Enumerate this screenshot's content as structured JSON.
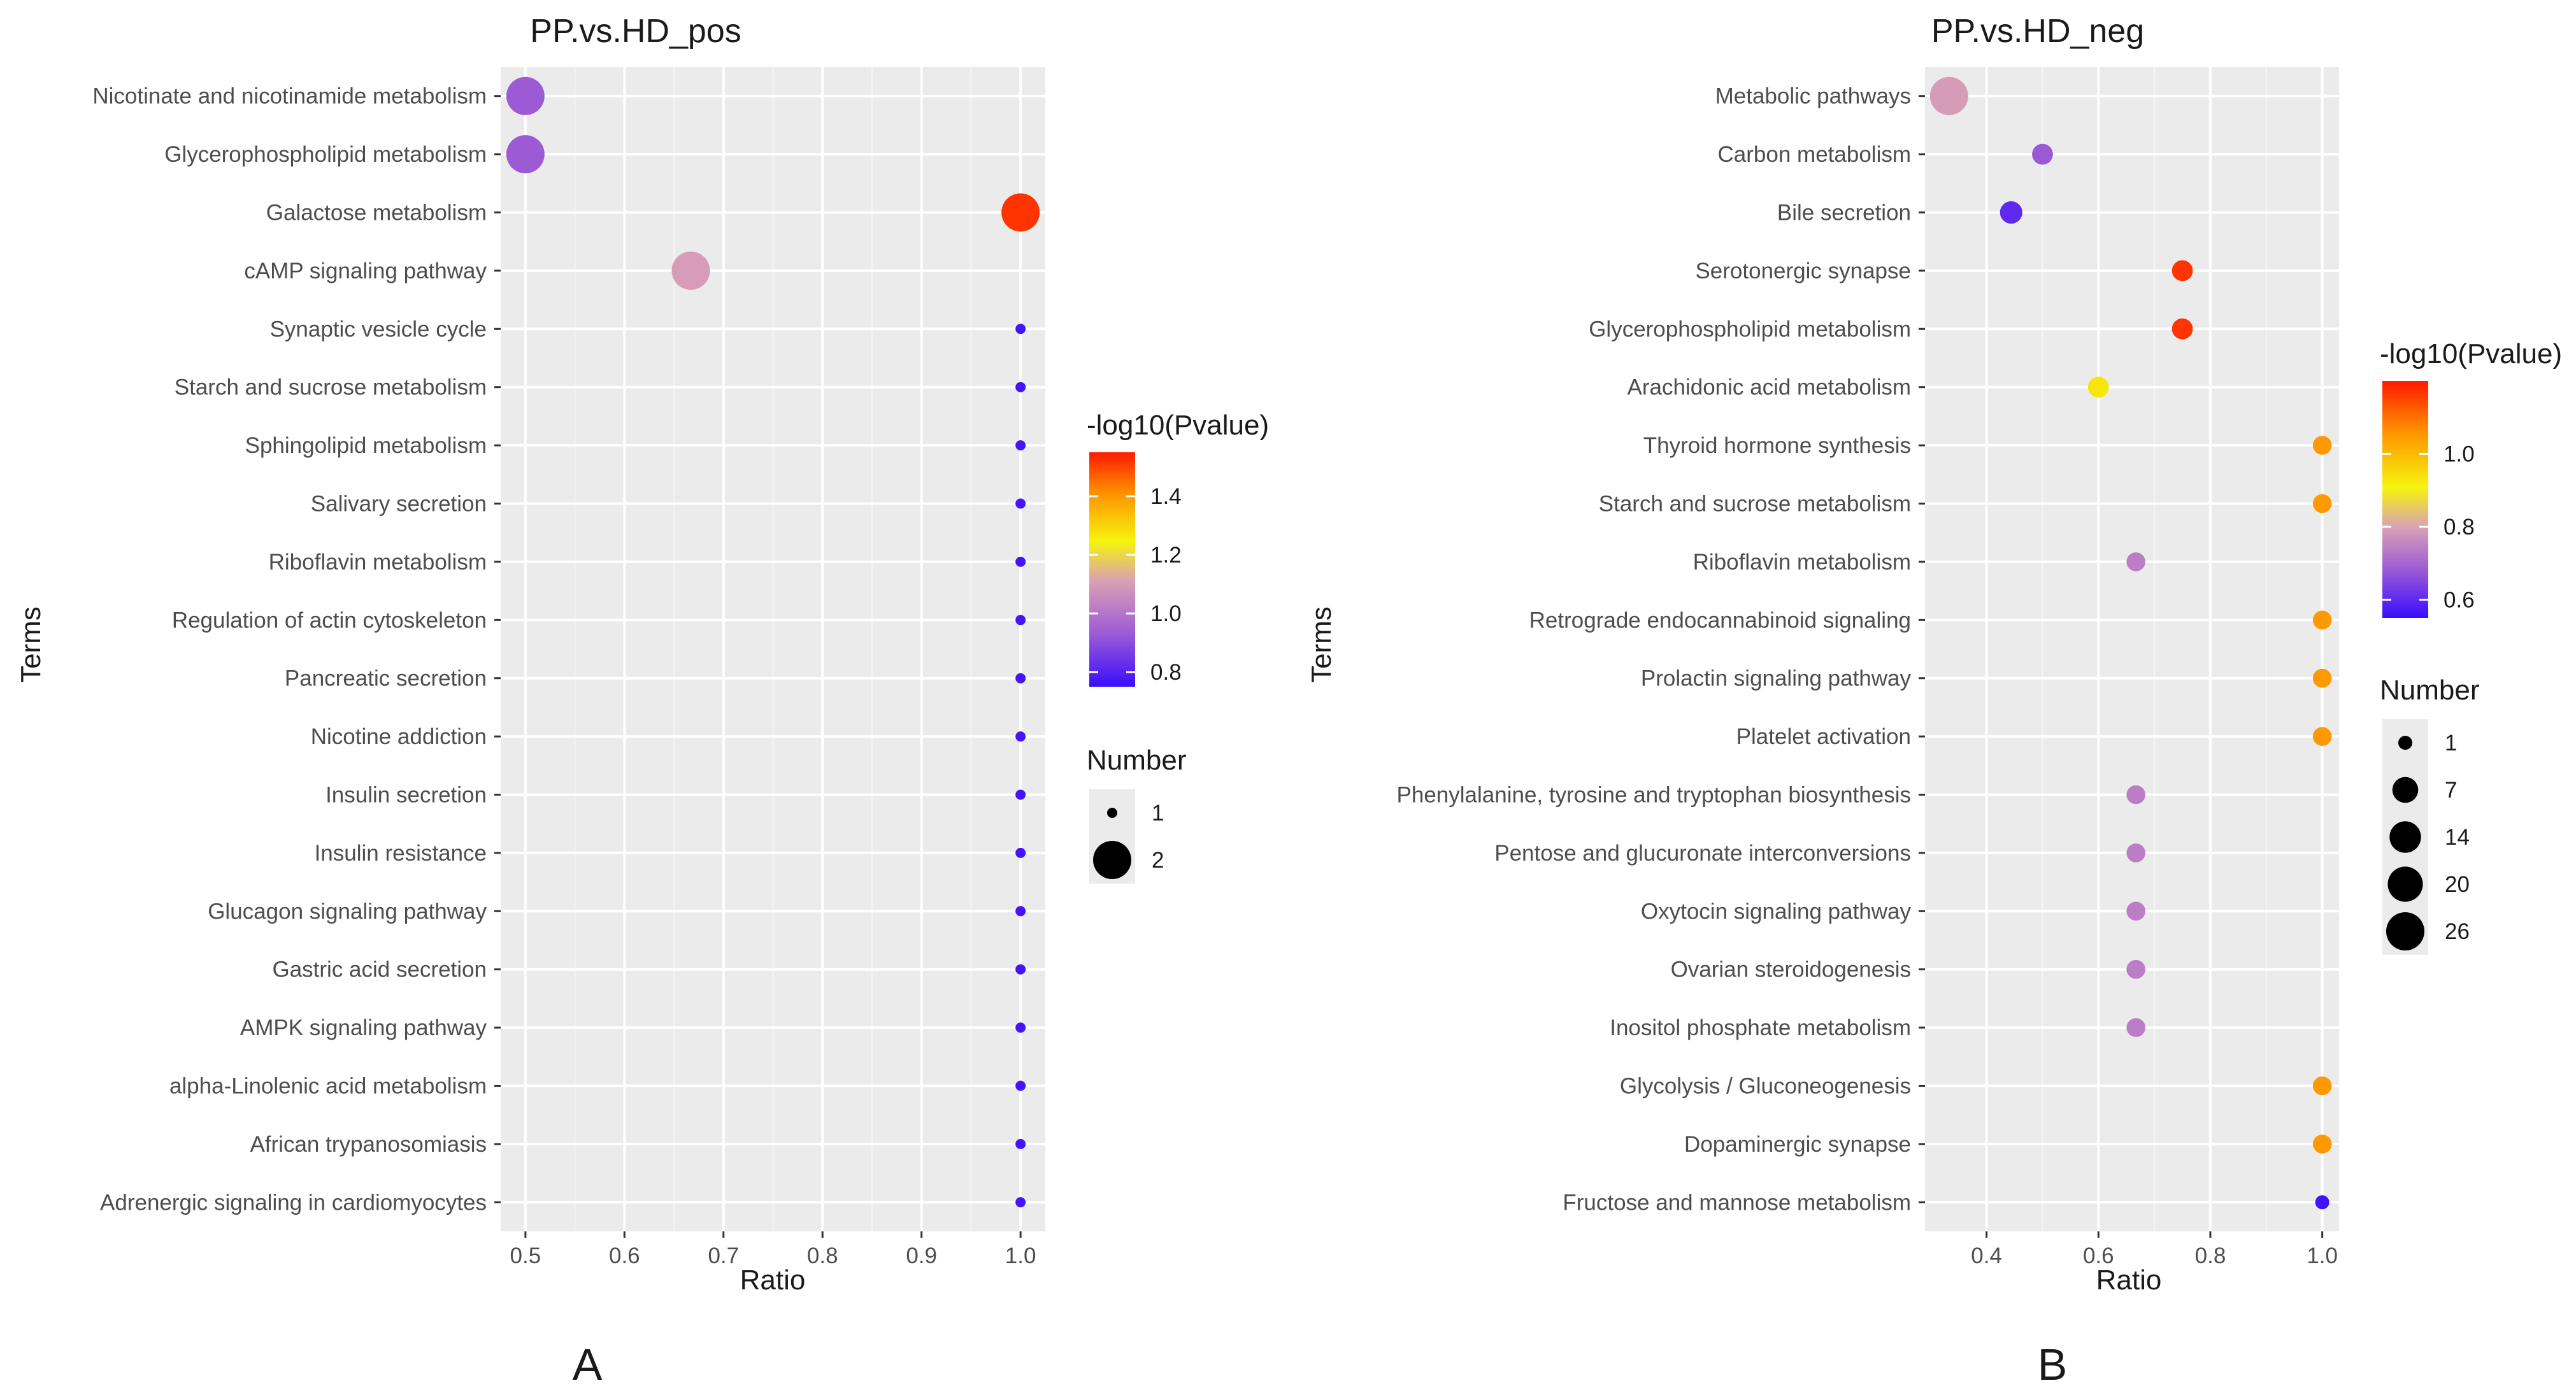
{
  "chart_data": [
    {
      "type": "scatter",
      "panel_label": "A",
      "title": "PP.vs.HD_pos",
      "xlabel": "Ratio",
      "ylabel": "Terms",
      "xlim": [
        0.475,
        1.025
      ],
      "xticks": [
        "0.5",
        "0.6",
        "0.7",
        "0.8",
        "0.9",
        "1.0"
      ],
      "xtick_values": [
        0.5,
        0.6,
        0.7,
        0.8,
        0.9,
        1.0
      ],
      "grid": true,
      "color_legend": {
        "title": "-log10(Pvalue)",
        "range": [
          0.75,
          1.55
        ],
        "ticks": [
          "1.4",
          "1.2",
          "1.0",
          "0.8"
        ],
        "tick_values": [
          1.4,
          1.2,
          1.0,
          0.8
        ],
        "low_color": "#3a0cff",
        "mid_color": "#9b59d6",
        "yellow_color": "#f6f40e",
        "high_color": "#ff1a00"
      },
      "size_legend": {
        "title": "Number",
        "labels": [
          "1",
          "2"
        ],
        "values": [
          1,
          2
        ]
      },
      "points": [
        {
          "term": "Nicotinate and nicotinamide metabolism",
          "ratio": 0.5,
          "pvalue": 0.93,
          "number": 2
        },
        {
          "term": "Glycerophospholipid metabolism",
          "ratio": 0.5,
          "pvalue": 0.93,
          "number": 2
        },
        {
          "term": "Galactose metabolism",
          "ratio": 1.0,
          "pvalue": 1.52,
          "number": 2
        },
        {
          "term": "cAMP signaling pathway",
          "ratio": 0.667,
          "pvalue": 1.1,
          "number": 2
        },
        {
          "term": "Synaptic vesicle cycle",
          "ratio": 1.0,
          "pvalue": 0.77,
          "number": 1
        },
        {
          "term": "Starch and sucrose metabolism",
          "ratio": 1.0,
          "pvalue": 0.77,
          "number": 1
        },
        {
          "term": "Sphingolipid metabolism",
          "ratio": 1.0,
          "pvalue": 0.77,
          "number": 1
        },
        {
          "term": "Salivary secretion",
          "ratio": 1.0,
          "pvalue": 0.77,
          "number": 1
        },
        {
          "term": "Riboflavin metabolism",
          "ratio": 1.0,
          "pvalue": 0.77,
          "number": 1
        },
        {
          "term": "Regulation of actin cytoskeleton",
          "ratio": 1.0,
          "pvalue": 0.77,
          "number": 1
        },
        {
          "term": "Pancreatic secretion",
          "ratio": 1.0,
          "pvalue": 0.77,
          "number": 1
        },
        {
          "term": "Nicotine addiction",
          "ratio": 1.0,
          "pvalue": 0.77,
          "number": 1
        },
        {
          "term": "Insulin secretion",
          "ratio": 1.0,
          "pvalue": 0.77,
          "number": 1
        },
        {
          "term": "Insulin resistance",
          "ratio": 1.0,
          "pvalue": 0.77,
          "number": 1
        },
        {
          "term": "Glucagon signaling pathway",
          "ratio": 1.0,
          "pvalue": 0.77,
          "number": 1
        },
        {
          "term": "Gastric acid secretion",
          "ratio": 1.0,
          "pvalue": 0.77,
          "number": 1
        },
        {
          "term": "AMPK signaling pathway",
          "ratio": 1.0,
          "pvalue": 0.77,
          "number": 1
        },
        {
          "term": "alpha-Linolenic acid metabolism",
          "ratio": 1.0,
          "pvalue": 0.77,
          "number": 1
        },
        {
          "term": "African trypanosomiasis",
          "ratio": 1.0,
          "pvalue": 0.77,
          "number": 1
        },
        {
          "term": "Adrenergic signaling in cardiomyocytes",
          "ratio": 1.0,
          "pvalue": 0.77,
          "number": 1
        }
      ]
    },
    {
      "type": "scatter",
      "panel_label": "B",
      "title": "PP.vs.HD_neg",
      "xlabel": "Ratio",
      "ylabel": "Terms",
      "xlim": [
        0.29,
        1.03
      ],
      "xticks": [
        "0.4",
        "0.6",
        "0.8",
        "1.0"
      ],
      "xtick_values": [
        0.4,
        0.6,
        0.8,
        1.0
      ],
      "grid": true,
      "color_legend": {
        "title": "-log10(Pvalue)",
        "range": [
          0.55,
          1.2
        ],
        "ticks": [
          "1.0",
          "0.8",
          "0.6"
        ],
        "tick_values": [
          1.0,
          0.8,
          0.6
        ],
        "low_color": "#3a0cff",
        "mid_color": "#d9a0b6",
        "yellow_color": "#f6f40e",
        "high_color": "#ff1a00"
      },
      "size_legend": {
        "title": "Number",
        "labels": [
          "1",
          "7",
          "14",
          "20",
          "26"
        ],
        "values": [
          1,
          7,
          14,
          20,
          26
        ]
      },
      "points": [
        {
          "term": "Metabolic pathways",
          "ratio": 0.333,
          "pvalue": 0.79,
          "number": 26
        },
        {
          "term": "Carbon metabolism",
          "ratio": 0.5,
          "pvalue": 0.68,
          "number": 3
        },
        {
          "term": "Bile secretion",
          "ratio": 0.444,
          "pvalue": 0.6,
          "number": 4
        },
        {
          "term": "Serotonergic synapse",
          "ratio": 0.75,
          "pvalue": 1.17,
          "number": 3
        },
        {
          "term": "Glycerophospholipid metabolism",
          "ratio": 0.75,
          "pvalue": 1.17,
          "number": 3
        },
        {
          "term": "Arachidonic acid metabolism",
          "ratio": 0.6,
          "pvalue": 0.93,
          "number": 3
        },
        {
          "term": "Thyroid hormone synthesis",
          "ratio": 1.0,
          "pvalue": 1.05,
          "number": 2
        },
        {
          "term": "Starch and sucrose metabolism",
          "ratio": 1.0,
          "pvalue": 1.05,
          "number": 2
        },
        {
          "term": "Riboflavin metabolism",
          "ratio": 0.667,
          "pvalue": 0.74,
          "number": 2
        },
        {
          "term": "Retrograde endocannabinoid signaling",
          "ratio": 1.0,
          "pvalue": 1.05,
          "number": 2
        },
        {
          "term": "Prolactin signaling pathway",
          "ratio": 1.0,
          "pvalue": 1.05,
          "number": 2
        },
        {
          "term": "Platelet activation",
          "ratio": 1.0,
          "pvalue": 1.05,
          "number": 2
        },
        {
          "term": "Phenylalanine, tyrosine and tryptophan biosynthesis",
          "ratio": 0.667,
          "pvalue": 0.74,
          "number": 2
        },
        {
          "term": "Pentose and glucuronate interconversions",
          "ratio": 0.667,
          "pvalue": 0.74,
          "number": 2
        },
        {
          "term": "Oxytocin signaling pathway",
          "ratio": 0.667,
          "pvalue": 0.74,
          "number": 2
        },
        {
          "term": "Ovarian steroidogenesis",
          "ratio": 0.667,
          "pvalue": 0.74,
          "number": 2
        },
        {
          "term": "Inositol phosphate metabolism",
          "ratio": 0.667,
          "pvalue": 0.74,
          "number": 2
        },
        {
          "term": "Glycolysis / Gluconeogenesis",
          "ratio": 1.0,
          "pvalue": 1.05,
          "number": 2
        },
        {
          "term": "Dopaminergic synapse",
          "ratio": 1.0,
          "pvalue": 1.05,
          "number": 2
        },
        {
          "term": "Fructose and mannose metabolism",
          "ratio": 1.0,
          "pvalue": 0.56,
          "number": 1
        }
      ]
    }
  ]
}
